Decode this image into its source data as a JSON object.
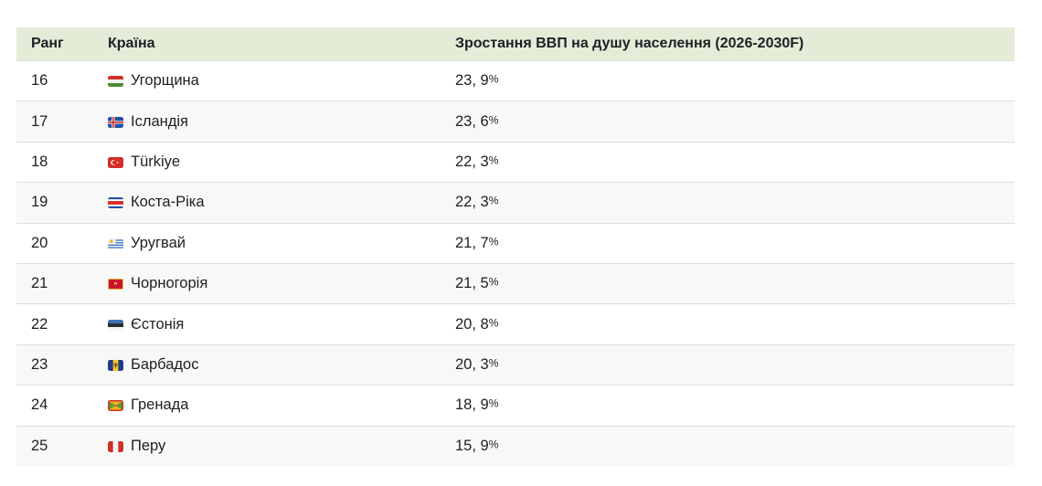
{
  "chart_data": {
    "type": "table",
    "columns": [
      {
        "id": "rank",
        "label": "Ранг"
      },
      {
        "id": "country",
        "label": "Країна"
      },
      {
        "id": "growth",
        "label": "Зростання ВВП на душу населення (2026-2030F)"
      }
    ],
    "rows": [
      {
        "rank": "16",
        "country": "Угорщина",
        "flag": "hungary",
        "value": "23, 9%",
        "value_num": 23.9
      },
      {
        "rank": "17",
        "country": "Ісландія",
        "flag": "iceland",
        "value": "23, 6%",
        "value_num": 23.6
      },
      {
        "rank": "18",
        "country": "Türkiye",
        "flag": "turkiye",
        "value": "22, 3%",
        "value_num": 22.3
      },
      {
        "rank": "19",
        "country": "Коста-Ріка",
        "flag": "costa-rica",
        "value": "22, 3%",
        "value_num": 22.3
      },
      {
        "rank": "20",
        "country": "Уругвай",
        "flag": "uruguay",
        "value": "21, 7%",
        "value_num": 21.7
      },
      {
        "rank": "21",
        "country": "Чорногорія",
        "flag": "montenegro",
        "value": "21, 5%",
        "value_num": 21.5
      },
      {
        "rank": "22",
        "country": "Єстонія",
        "flag": "estonia",
        "value": "20, 8%",
        "value_num": 20.8
      },
      {
        "rank": "23",
        "country": "Барбадос",
        "flag": "barbados",
        "value": "20, 3%",
        "value_num": 20.3
      },
      {
        "rank": "24",
        "country": "Гренада",
        "flag": "grenada",
        "value": "18, 9%",
        "value_num": 18.9
      },
      {
        "rank": "25",
        "country": "Перу",
        "flag": "peru",
        "value": "15, 9%",
        "value_num": 15.9
      }
    ]
  },
  "colors": {
    "header_bg": "#e4ecd8",
    "row_alt_bg": "#f8f8f8",
    "divider": "#dddddd",
    "text": "#202124"
  }
}
